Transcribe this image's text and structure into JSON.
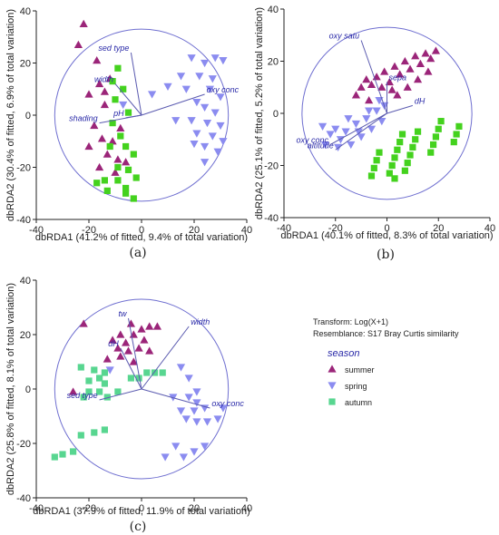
{
  "colors": {
    "summer": "#9b2579",
    "spring": "#8b8cf0",
    "autumn": "#58d690",
    "autumn_b": "#44d21e",
    "axis": "#222222",
    "vector": "#5b5bb0",
    "circle": "#6f6fd0"
  },
  "legend": {
    "transform": "Transform: Log(X+1)",
    "resemblance": "Resemblance: S17 Bray Curtis similarity",
    "title": "season",
    "entries": [
      {
        "label": "summer",
        "marker": "triangle-up",
        "color_key": "summer"
      },
      {
        "label": "spring",
        "marker": "triangle-down",
        "color_key": "spring"
      },
      {
        "label": "autumn",
        "marker": "square",
        "color_key": "autumn"
      }
    ]
  },
  "chart_data": [
    {
      "type": "scatter",
      "panel": "(a)",
      "xlabel": "dbRDA1 (41.2% of fitted, 9.4% of total variation)",
      "ylabel": "dbRDA2 (30.4% of fitted, 6.9% of total variation)",
      "xlim": [
        -40,
        40
      ],
      "ylim": [
        -40,
        40
      ],
      "xticks": [
        "-40",
        "-20",
        "0",
        "20",
        "40"
      ],
      "yticks": [
        "-40",
        "-20",
        "0",
        "20",
        "40"
      ],
      "circle_radius": 33,
      "vectors": [
        {
          "label": "sed type",
          "x": -4,
          "y": 24
        },
        {
          "label": "width",
          "x": -10,
          "y": 12
        },
        {
          "label": "oxy conc",
          "x": 24,
          "y": 8
        },
        {
          "label": "pH",
          "x": -6,
          "y": -1
        },
        {
          "label": "shading",
          "x": -16,
          "y": -3
        }
      ],
      "series": [
        {
          "name": "summer",
          "color_key": "summer",
          "marker": "triangle-up",
          "points": [
            [
              -22,
              35
            ],
            [
              -24,
              27
            ],
            [
              -17,
              21
            ],
            [
              -16,
              12
            ],
            [
              -20,
              8
            ],
            [
              -14,
              9
            ],
            [
              -12,
              14
            ],
            [
              -18,
              -4
            ],
            [
              -15,
              -9
            ],
            [
              -20,
              -12
            ],
            [
              -13,
              -15
            ],
            [
              -9,
              -17
            ],
            [
              -16,
              -20
            ],
            [
              -10,
              -22
            ],
            [
              -6,
              -18
            ],
            [
              -11,
              -10
            ],
            [
              -14,
              4
            ],
            [
              -8,
              -5
            ]
          ]
        },
        {
          "name": "spring",
          "color_key": "spring",
          "marker": "triangle-down",
          "points": [
            [
              19,
              22
            ],
            [
              24,
              20
            ],
            [
              28,
              22
            ],
            [
              31,
              21
            ],
            [
              15,
              15
            ],
            [
              22,
              15
            ],
            [
              27,
              14
            ],
            [
              10,
              11
            ],
            [
              17,
              10
            ],
            [
              26,
              10
            ],
            [
              30,
              7
            ],
            [
              4,
              8
            ],
            [
              21,
              5
            ],
            [
              24,
              3
            ],
            [
              28,
              1
            ],
            [
              13,
              -2
            ],
            [
              19,
              -2
            ],
            [
              25,
              -3
            ],
            [
              30,
              -4
            ],
            [
              21,
              -7
            ],
            [
              27,
              -8
            ],
            [
              31,
              -10
            ],
            [
              20,
              -11
            ],
            [
              24,
              -12
            ],
            [
              29,
              -14
            ],
            [
              24,
              -18
            ],
            [
              -7,
              4
            ]
          ]
        },
        {
          "name": "autumn",
          "color_key": "autumn_b",
          "marker": "square",
          "points": [
            [
              -9,
              18
            ],
            [
              -7,
              10
            ],
            [
              -10,
              6
            ],
            [
              -5,
              1
            ],
            [
              -11,
              -3
            ],
            [
              -8,
              -8
            ],
            [
              -12,
              -12
            ],
            [
              -6,
              -12
            ],
            [
              -3,
              -15
            ],
            [
              -9,
              -20
            ],
            [
              -5,
              -21
            ],
            [
              -14,
              -25
            ],
            [
              -9,
              -25
            ],
            [
              -2,
              -24
            ],
            [
              -6,
              -30
            ],
            [
              -13,
              -29
            ],
            [
              -17,
              -26
            ],
            [
              -3,
              -32
            ],
            [
              -11,
              13
            ],
            [
              -6,
              -28
            ]
          ]
        }
      ]
    },
    {
      "type": "scatter",
      "panel": "(b)",
      "xlabel": "dbRDA1 (40.1% of fitted, 8.3% of total variation)",
      "ylabel": "dbRDA2 (25.1% of fitted, 5.2% of total variation)",
      "xlim": [
        -40,
        40
      ],
      "ylim": [
        -40,
        40
      ],
      "xticks": [
        "-40",
        "-20",
        "0",
        "20",
        "40"
      ],
      "yticks": [
        "-40",
        "-20",
        "0",
        "20",
        "40"
      ],
      "circle_radius": 33,
      "vectors": [
        {
          "label": "oxy satu",
          "x": -10,
          "y": 28
        },
        {
          "label": "sepa",
          "x": 0,
          "y": 12
        },
        {
          "label": "dH",
          "x": 10,
          "y": 3
        },
        {
          "label": "oxy conc",
          "x": -22,
          "y": -12
        },
        {
          "label": "altitude",
          "x": -20,
          "y": -14
        }
      ],
      "series": [
        {
          "name": "summer",
          "color_key": "summer",
          "marker": "triangle-up",
          "points": [
            [
              -10,
              10
            ],
            [
              -8,
              13
            ],
            [
              -6,
              11
            ],
            [
              -4,
              14
            ],
            [
              -2,
              10
            ],
            [
              -1,
              16
            ],
            [
              1,
              12
            ],
            [
              3,
              18
            ],
            [
              5,
              15
            ],
            [
              7,
              20
            ],
            [
              9,
              17
            ],
            [
              11,
              22
            ],
            [
              13,
              19
            ],
            [
              15,
              23
            ],
            [
              17,
              21
            ],
            [
              19,
              24
            ],
            [
              -12,
              7
            ],
            [
              4,
              7
            ],
            [
              8,
              10
            ],
            [
              12,
              13
            ],
            [
              16,
              16
            ],
            [
              -7,
              5
            ],
            [
              2,
              9
            ]
          ]
        },
        {
          "name": "spring",
          "color_key": "spring",
          "marker": "triangle-down",
          "points": [
            [
              -25,
              -5
            ],
            [
              -22,
              -8
            ],
            [
              -20,
              -6
            ],
            [
              -18,
              -10
            ],
            [
              -16,
              -7
            ],
            [
              -14,
              -12
            ],
            [
              -12,
              -4
            ],
            [
              -10,
              -9
            ],
            [
              -8,
              -2
            ],
            [
              -6,
              -6
            ],
            [
              -4,
              1
            ],
            [
              -2,
              -3
            ],
            [
              -1,
              3
            ],
            [
              -24,
              -12
            ],
            [
              -19,
              -13
            ],
            [
              -15,
              -2
            ],
            [
              -11,
              -7
            ],
            [
              -3,
              5
            ],
            [
              -7,
              1
            ]
          ]
        },
        {
          "name": "autumn",
          "color_key": "autumn_b",
          "marker": "square",
          "points": [
            [
              -6,
              -24
            ],
            [
              -5,
              -21
            ],
            [
              -4,
              -18
            ],
            [
              -3,
              -15
            ],
            [
              1,
              -23
            ],
            [
              2,
              -20
            ],
            [
              3,
              -17
            ],
            [
              4,
              -14
            ],
            [
              5,
              -11
            ],
            [
              6,
              -8
            ],
            [
              8,
              -19
            ],
            [
              9,
              -16
            ],
            [
              10,
              -13
            ],
            [
              11,
              -10
            ],
            [
              12,
              -7
            ],
            [
              17,
              -15
            ],
            [
              18,
              -12
            ],
            [
              19,
              -9
            ],
            [
              20,
              -6
            ],
            [
              21,
              -3
            ],
            [
              26,
              -11
            ],
            [
              27,
              -8
            ],
            [
              28,
              -5
            ],
            [
              3,
              -25
            ],
            [
              7,
              -22
            ]
          ]
        }
      ]
    },
    {
      "type": "scatter",
      "panel": "(c)",
      "xlabel": "dbRDA1 (37.9% of fitted, 11.9% of total variation)",
      "ylabel": "dbRDA2 (25.8% of fitted, 8.1% of total variation)",
      "xlim": [
        -40,
        40
      ],
      "ylim": [
        -40,
        40
      ],
      "xticks": [
        "-40",
        "-20",
        "0",
        "20",
        "40"
      ],
      "yticks": [
        "-40",
        "-20",
        "0",
        "20",
        "40"
      ],
      "circle_radius": 33,
      "vectors": [
        {
          "label": "tw",
          "x": -5,
          "y": 26
        },
        {
          "label": "width",
          "x": 18,
          "y": 23
        },
        {
          "label": "dH",
          "x": -8,
          "y": 15
        },
        {
          "label": "oxy conc",
          "x": 26,
          "y": -7
        },
        {
          "label": "sed type",
          "x": -16,
          "y": -4
        }
      ],
      "series": [
        {
          "name": "summer",
          "color_key": "summer",
          "marker": "triangle-up",
          "points": [
            [
              -22,
              24
            ],
            [
              -4,
              24
            ],
            [
              0,
              22
            ],
            [
              3,
              23
            ],
            [
              6,
              23
            ],
            [
              -8,
              20
            ],
            [
              -3,
              20
            ],
            [
              1,
              18
            ],
            [
              -11,
              18
            ],
            [
              -6,
              17
            ],
            [
              -9,
              15
            ],
            [
              -5,
              14
            ],
            [
              -1,
              15
            ],
            [
              3,
              14
            ],
            [
              -13,
              11
            ],
            [
              -3,
              10
            ],
            [
              -26,
              -1
            ],
            [
              -8,
              12
            ]
          ]
        },
        {
          "name": "spring",
          "color_key": "spring",
          "marker": "triangle-down",
          "points": [
            [
              15,
              8
            ],
            [
              18,
              4
            ],
            [
              21,
              -1
            ],
            [
              -12,
              7
            ],
            [
              12,
              -3
            ],
            [
              18,
              -3
            ],
            [
              21,
              -5
            ],
            [
              15,
              -8
            ],
            [
              20,
              -8
            ],
            [
              24,
              -7
            ],
            [
              31,
              -7
            ],
            [
              17,
              -11
            ],
            [
              21,
              -12
            ],
            [
              25,
              -12
            ],
            [
              29,
              -11
            ],
            [
              9,
              -25
            ],
            [
              16,
              -25
            ],
            [
              20,
              -23
            ],
            [
              24,
              -21
            ],
            [
              13,
              -21
            ]
          ]
        },
        {
          "name": "autumn",
          "color_key": "autumn",
          "marker": "square",
          "points": [
            [
              -23,
              8
            ],
            [
              -18,
              7
            ],
            [
              -14,
              6
            ],
            [
              -16,
              4
            ],
            [
              -20,
              3
            ],
            [
              -14,
              2
            ],
            [
              -20,
              -1
            ],
            [
              -16,
              -1
            ],
            [
              -22,
              -3
            ],
            [
              -13,
              -3
            ],
            [
              -23,
              -17
            ],
            [
              -18,
              -16
            ],
            [
              -14,
              -15
            ],
            [
              -26,
              -23
            ],
            [
              -30,
              -24
            ],
            [
              -33,
              -25
            ],
            [
              -4,
              4
            ],
            [
              -1,
              4
            ],
            [
              2,
              6
            ],
            [
              5,
              6
            ],
            [
              8,
              6
            ],
            [
              -9,
              -1
            ]
          ]
        }
      ]
    }
  ]
}
